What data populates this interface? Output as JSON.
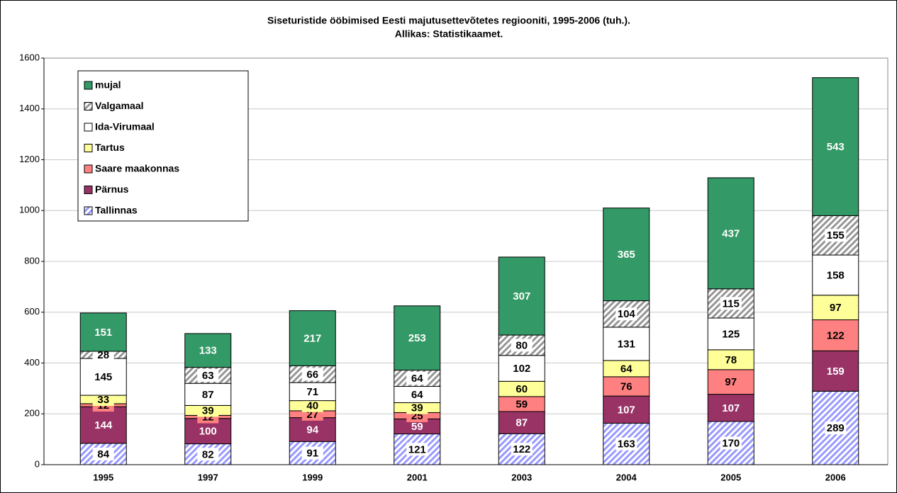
{
  "chart_data": {
    "type": "stacked_bar",
    "title": "Siseturistide ööbimised Eesti majutusettevõtetes regiooniti, 1995-2006 (tuh.).",
    "subtitle": "Allikas: Statistikaamet.",
    "categories": [
      "1995",
      "1997",
      "1999",
      "2001",
      "2003",
      "2004",
      "2005",
      "2006"
    ],
    "series": [
      {
        "name": "Tallinnas",
        "color": "#9999ff",
        "pattern": "hatch",
        "values": [
          84,
          82,
          91,
          121,
          122,
          163,
          170,
          289
        ]
      },
      {
        "name": "Pärnus",
        "color": "#993366",
        "values": [
          144,
          100,
          94,
          59,
          87,
          107,
          107,
          159
        ]
      },
      {
        "name": "Saare maakonnas",
        "color": "#ff8080",
        "values": [
          12,
          12,
          27,
          25,
          59,
          76,
          97,
          122
        ]
      },
      {
        "name": "Tartus",
        "color": "#ffff99",
        "values": [
          33,
          39,
          40,
          39,
          60,
          64,
          78,
          97
        ]
      },
      {
        "name": "Ida-Virumaal",
        "color": "#ffffff",
        "values": [
          145,
          87,
          71,
          64,
          102,
          131,
          125,
          158
        ]
      },
      {
        "name": "Valgamaal",
        "color": "#969696",
        "pattern": "hatch",
        "values": [
          28,
          63,
          66,
          64,
          80,
          104,
          115,
          155
        ]
      },
      {
        "name": "mujal",
        "color": "#339966",
        "values": [
          151,
          133,
          217,
          253,
          307,
          365,
          437,
          543
        ]
      }
    ],
    "ylim": [
      0,
      1600
    ],
    "yticks": [
      0,
      200,
      400,
      600,
      800,
      1000,
      1200,
      1400,
      1600
    ],
    "grid": true,
    "legend": "upper left"
  }
}
